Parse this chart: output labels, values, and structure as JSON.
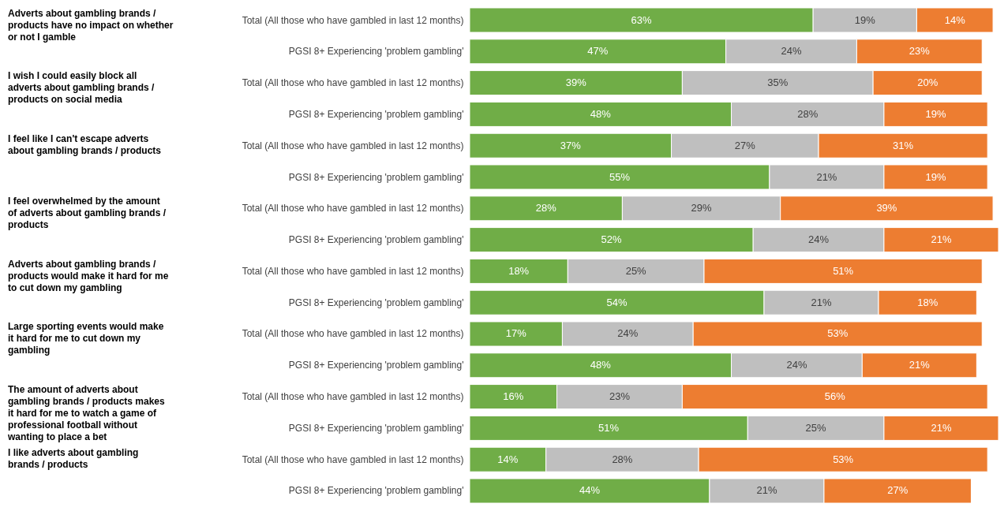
{
  "chart_data": {
    "type": "bar",
    "orientation": "horizontal",
    "stacked": true,
    "categories": [
      "Total (All those who have gambled in last 12 months)",
      "PGSI 8+ Experiencing 'problem gambling'",
      "Total (All those who have gambled in last 12 months)",
      "PGSI 8+ Experiencing 'problem gambling'",
      "Total (All those who have gambled in last 12 months)",
      "PGSI 8+ Experiencing 'problem gambling'",
      "Total (All those who have gambled in last 12 months)",
      "PGSI 8+ Experiencing 'problem gambling'",
      "Total (All those who have gambled in last 12 months)",
      "PGSI 8+ Experiencing 'problem gambling'",
      "Total (All those who have gambled in last 12 months)",
      "PGSI 8+ Experiencing 'problem gambling'",
      "Total (All those who have gambled in last 12 months)",
      "PGSI 8+ Experiencing 'problem gambling'",
      "Total (All those who have gambled in last 12 months)",
      "PGSI 8+ Experiencing 'problem gambling'"
    ],
    "series": [
      {
        "color": "#70ad47",
        "values": [
          63,
          47,
          39,
          48,
          37,
          55,
          28,
          52,
          18,
          54,
          17,
          48,
          16,
          51,
          14,
          44
        ],
        "value_labels": [
          "63%",
          "47%",
          "39%",
          "48%",
          "37%",
          "55%",
          "28%",
          "52%",
          "18%",
          "54%",
          "17%",
          "48%",
          "16%",
          "51%",
          "14%",
          "44%"
        ]
      },
      {
        "color": "#bfbfbf",
        "values": [
          19,
          24,
          35,
          28,
          27,
          21,
          29,
          24,
          25,
          21,
          24,
          24,
          23,
          25,
          28,
          21
        ],
        "value_labels": [
          "19%",
          "24%",
          "35%",
          "28%",
          "27%",
          "21%",
          "29%",
          "24%",
          "25%",
          "21%",
          "24%",
          "24%",
          "23%",
          "25%",
          "28%",
          "21%"
        ]
      },
      {
        "color": "#ed7d31",
        "values": [
          14,
          23,
          20,
          19,
          31,
          19,
          39,
          21,
          51,
          18,
          53,
          21,
          56,
          21,
          53,
          27
        ],
        "value_labels": [
          "14%",
          "23%",
          "20%",
          "19%",
          "31%",
          "19%",
          "39%",
          "21%",
          "51%",
          "18%",
          "53%",
          "21%",
          "56%",
          "21%",
          "53%",
          "27%"
        ]
      }
    ],
    "annotations": [
      "Adverts about gambling brands / products have no impact on whether or not I gamble",
      "I wish I could easily block all adverts about gambling brands / products on social media",
      "I feel like I can't escape adverts about gambling brands / products",
      "I feel overwhelmed by the amount of adverts about gambling brands / products",
      "Adverts about gambling brands / products would make it hard for me to cut down my gambling",
      "Large sporting events would make it hard for me to cut down my gambling",
      "The amount of adverts about gambling brands / products makes it hard for me to watch a game of professional football without wanting to place a bet",
      "I like adverts about gambling brands / products"
    ]
  }
}
